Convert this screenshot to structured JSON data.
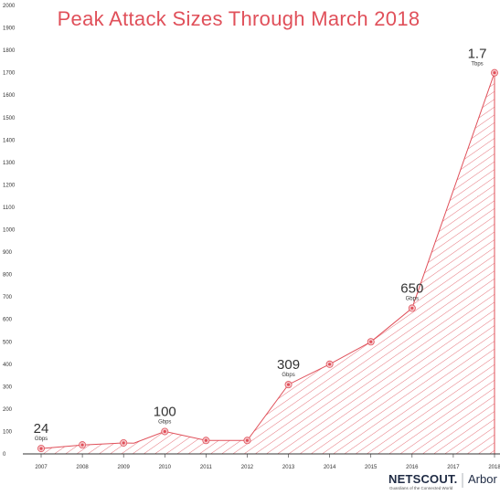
{
  "chart_data": {
    "type": "area",
    "title": "Peak Attack Sizes Through March 2018",
    "x": [
      "2007",
      "2008",
      "2009",
      "2010",
      "2011",
      "2012",
      "2013",
      "2014",
      "2015",
      "2016",
      "2017",
      "2018"
    ],
    "series": [
      {
        "points": [
          {
            "x": 2007.0,
            "y": 24
          },
          {
            "x": 2008.0,
            "y": 40
          },
          {
            "x": 2009.0,
            "y": 49
          },
          {
            "x": 2009.25,
            "y": 48
          },
          {
            "x": 2010.0,
            "y": 100
          },
          {
            "x": 2011.0,
            "y": 60
          },
          {
            "x": 2012.0,
            "y": 60
          },
          {
            "x": 2013.0,
            "y": 309
          },
          {
            "x": 2014.0,
            "y": 400
          },
          {
            "x": 2015.0,
            "y": 500
          },
          {
            "x": 2016.0,
            "y": 650
          },
          {
            "x": 2018.0,
            "y": 1700
          }
        ],
        "markers": [
          2007,
          2008,
          2009,
          2010,
          2011,
          2012,
          2013,
          2014,
          2015,
          2016,
          2018
        ]
      }
    ],
    "yticks": [
      0,
      100,
      200,
      300,
      400,
      500,
      600,
      700,
      800,
      900,
      1000,
      1100,
      1200,
      1300,
      1400,
      1500,
      1600,
      1700,
      1800,
      1900,
      2000
    ],
    "ylim": [
      0,
      2000
    ],
    "xlim": [
      2007,
      2018
    ],
    "annotations": [
      {
        "x": 2007,
        "y": 24,
        "value": "24",
        "unit": "Gbps"
      },
      {
        "x": 2010,
        "y": 100,
        "value": "100",
        "unit": "Gbps"
      },
      {
        "x": 2013,
        "y": 309,
        "value": "309",
        "unit": "Gbps"
      },
      {
        "x": 2016,
        "y": 650,
        "value": "650",
        "unit": "Gbps"
      },
      {
        "x": 2018,
        "y": 1700,
        "value": "1.7",
        "unit": "Tbps"
      }
    ],
    "grid": false,
    "colors": {
      "line": "#e0505a",
      "hatch": "#e0505a",
      "title": "#e0505a",
      "axis": "#333333"
    }
  },
  "brand": {
    "name": "NETSCOUT.",
    "product": "Arbor",
    "tagline": "Guardians of the Connected World"
  }
}
